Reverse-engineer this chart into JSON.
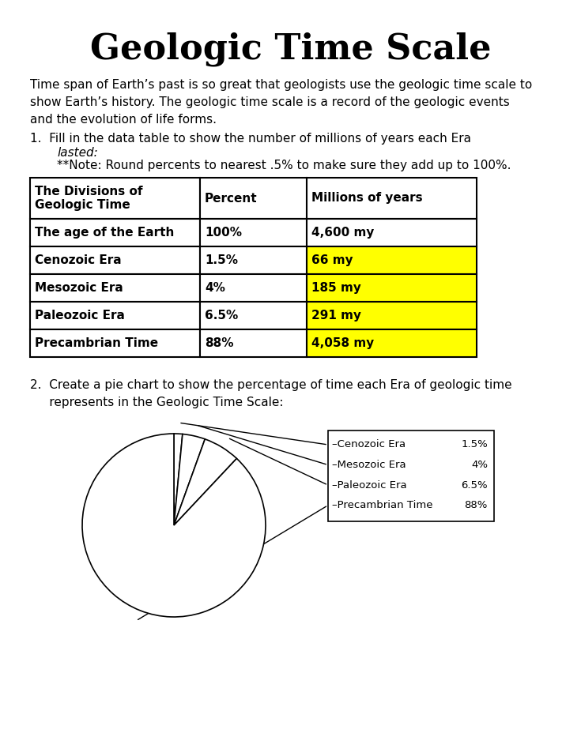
{
  "title": "Geologic Time Scale",
  "intro_text": "Time span of Earth’s past is so great that geologists use the geologic time scale to\nshow Earth’s history. The geologic time scale is a record of the geologic events\nand the evolution of life forms.",
  "q1_prefix": "1.  Fill in the data table to show the number of millions of years each Era",
  "q1_italic": "lasted:",
  "q1_note": "\t**Note: Round percents to nearest .5% to make sure they add up to 100%.",
  "table_headers": [
    "The Divisions of\nGeologic Time",
    "Percent",
    "Millions of years"
  ],
  "table_rows": [
    {
      "col1": "The age of the Earth",
      "col2": "100%",
      "col3": "4,600 my",
      "highlight": false
    },
    {
      "col1": "Cenozoic Era",
      "col2": "1.5%",
      "col3": "66 my",
      "highlight": true
    },
    {
      "col1": "Mesozoic Era",
      "col2": "4%",
      "col3": "185 my",
      "highlight": true
    },
    {
      "col1": "Paleozoic Era",
      "col2": "6.5%",
      "col3": "291 my",
      "highlight": true
    },
    {
      "col1": "Precambrian Time",
      "col2": "88%",
      "col3": "4,058 my",
      "highlight": true
    }
  ],
  "q2_text": "2.  Create a pie chart to show the percentage of time each Era of geologic time\n     represents in the Geologic Time Scale:",
  "pie_values": [
    1.5,
    4.0,
    6.5,
    88.0
  ],
  "pie_labels": [
    "Cenozoic Era",
    "Mesozoic Era",
    "Paleozoic Era",
    "Precambrian Time"
  ],
  "pie_percents": [
    "1.5%",
    "4%",
    "6.5%",
    "88%"
  ],
  "highlight_color": "#FFFF00",
  "bg_color": "#FFFFFF",
  "text_color": "#000000"
}
